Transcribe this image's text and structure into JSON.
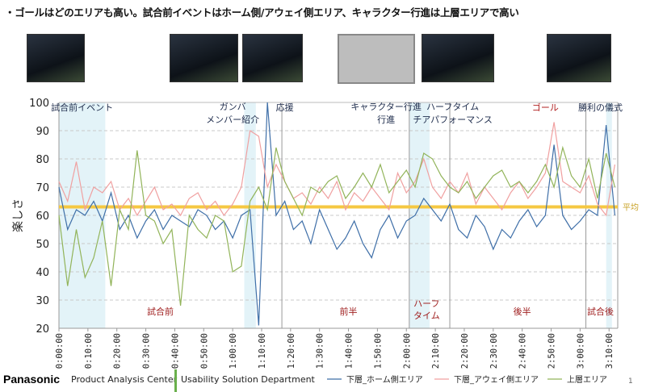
{
  "title": "・ゴールはどのエリアも高い。試合前イベントはホーム側/アウェイ側エリア、キャラクター行進は上層エリアで高い",
  "footer": {
    "brand": "Panasonic",
    "dept1": "Product Analysis Center",
    "dept2": "Usability Solution Department",
    "page": "1"
  },
  "chart_data": {
    "type": "line",
    "ylabel": "楽しさ",
    "ylim": [
      20,
      100
    ],
    "yticks": [
      "100",
      "90",
      "80",
      "70",
      "60",
      "50",
      "40",
      "30",
      "20"
    ],
    "xlim_minutes": [
      0,
      193
    ],
    "xticks": [
      "0:00:00",
      "0:10:00",
      "0:20:00",
      "0:30:00",
      "0:40:00",
      "0:50:00",
      "1:00:00",
      "1:10:00",
      "1:20:00",
      "1:30:00",
      "1:40:00",
      "1:50:00",
      "2:00:00",
      "2:10:00",
      "2:20:00",
      "2:30:00",
      "2:40:00",
      "2:50:00",
      "3:00:00",
      "3:10:00"
    ],
    "x_minutes_step": 3,
    "average": {
      "label": "平均",
      "value": 63,
      "color": "#f5c842"
    },
    "series": [
      {
        "name": "下層_ホーム側エリア",
        "color": "#3f6fa8",
        "values": [
          70,
          55,
          62,
          60,
          65,
          58,
          68,
          55,
          60,
          52,
          58,
          62,
          55,
          60,
          58,
          56,
          62,
          60,
          55,
          58,
          52,
          60,
          62,
          21,
          100,
          60,
          65,
          55,
          58,
          50,
          62,
          55,
          48,
          52,
          58,
          50,
          45,
          55,
          60,
          52,
          58,
          60,
          66,
          62,
          58,
          64,
          55,
          52,
          60,
          56,
          48,
          55,
          52,
          58,
          62,
          56,
          60,
          85,
          60,
          55,
          58,
          62,
          60,
          92,
          60
        ]
      },
      {
        "name": "下層_アウェイ側エリア",
        "color": "#f0a0a0",
        "values": [
          72,
          65,
          79,
          62,
          70,
          68,
          72,
          62,
          66,
          60,
          65,
          70,
          62,
          64,
          60,
          66,
          68,
          62,
          65,
          60,
          64,
          70,
          90,
          88,
          70,
          78,
          72,
          66,
          68,
          64,
          70,
          66,
          72,
          62,
          68,
          65,
          70,
          66,
          62,
          75,
          68,
          72,
          80,
          70,
          66,
          72,
          68,
          75,
          64,
          70,
          66,
          62,
          68,
          72,
          66,
          70,
          75,
          93,
          72,
          70,
          68,
          74,
          64,
          60,
          78
        ]
      },
      {
        "name": "上層エリア",
        "color": "#92b45a",
        "values": [
          60,
          35,
          55,
          38,
          45,
          58,
          35,
          62,
          55,
          83,
          60,
          58,
          50,
          55,
          28,
          60,
          55,
          52,
          60,
          58,
          40,
          42,
          65,
          70,
          62,
          84,
          72,
          66,
          60,
          70,
          68,
          72,
          74,
          66,
          70,
          75,
          70,
          78,
          68,
          72,
          76,
          70,
          82,
          80,
          74,
          70,
          68,
          72,
          66,
          70,
          74,
          76,
          70,
          72,
          68,
          72,
          78,
          70,
          84,
          74,
          70,
          80,
          66,
          82,
          70
        ]
      }
    ],
    "highlight_ranges_minutes": [
      [
        0,
        16
      ],
      [
        64,
        68
      ],
      [
        121,
        128
      ],
      [
        189,
        191
      ]
    ],
    "divider_minutes": [
      77,
      121,
      135,
      182,
      193
    ],
    "phases": [
      {
        "label": "試合前",
        "at": 35
      },
      {
        "label": "前半",
        "at": 100
      },
      {
        "label": "ハーフ",
        "label2": "タイム",
        "at": 127
      },
      {
        "label": "後半",
        "at": 160
      },
      {
        "label": "試合後",
        "at": 187
      }
    ],
    "annotations": [
      {
        "label": "試合前イベント",
        "at": 8,
        "color": "#1f2d4d"
      },
      {
        "label": "ガンバ",
        "label2": "メンバー紹介",
        "at": 60,
        "color": "#1f2d4d"
      },
      {
        "label": "応援",
        "at": 78,
        "color": "#1f2d4d"
      },
      {
        "label": "キャラクター行進",
        "label2": "行進",
        "at": 113,
        "color": "#1f2d4d"
      },
      {
        "label": "ハーフタイム",
        "label2": "チアパフォーマンス",
        "at": 136,
        "color": "#1f2d4d"
      },
      {
        "label": "ゴール",
        "at": 168,
        "color": "#b02020"
      },
      {
        "label": "勝利の儀式",
        "at": 187,
        "color": "#1f2d4d"
      }
    ]
  }
}
